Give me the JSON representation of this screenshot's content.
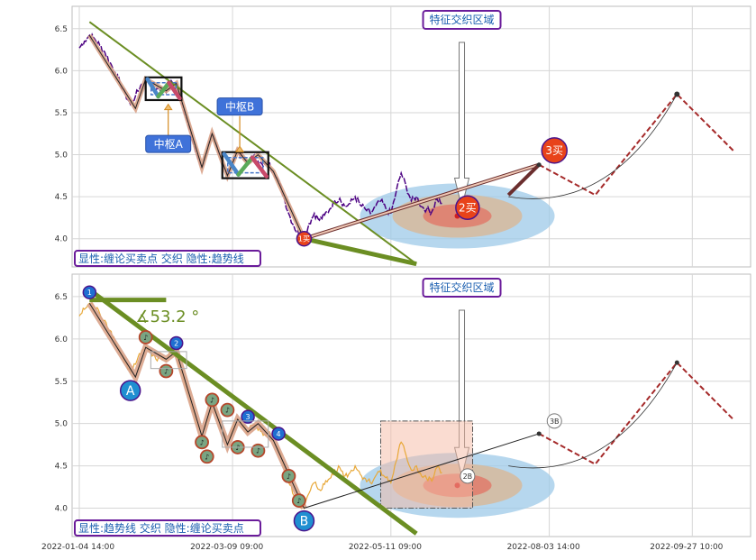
{
  "chart_data": {
    "type": "line",
    "x_ticks": [
      "2022-01-04 14:00",
      "2022-03-09 09:00",
      "2022-05-11 09:00",
      "2022-08-03 14:00",
      "2022-09-27 10:00"
    ],
    "panels": [
      {
        "caption": "显性:缠论买卖点 交织 隐性:趋势线",
        "zone_label": "特征交织区域",
        "y_ticks": [
          "4.0",
          "4.5",
          "5.0",
          "5.5",
          "6.0",
          "6.5"
        ],
        "ylim": [
          3.75,
          6.68
        ],
        "price_series_color": "#4b0082",
        "price": [
          6.27,
          6.35,
          6.42,
          6.38,
          6.3,
          6.22,
          6.1,
          5.98,
          5.85,
          5.72,
          5.6,
          5.7,
          5.82,
          5.9,
          5.84,
          5.76,
          5.8,
          5.74,
          5.88,
          5.8,
          5.6,
          5.42,
          5.2,
          5.0,
          4.85,
          5.02,
          5.25,
          5.1,
          4.92,
          4.75,
          4.95,
          5.05,
          4.96,
          4.9,
          4.98,
          4.92,
          4.86,
          4.9,
          4.8,
          4.7,
          4.5,
          4.3,
          4.15,
          4.05,
          4.0,
          4.18,
          4.3,
          4.22,
          4.28,
          4.35,
          4.45,
          4.48,
          4.38,
          4.42,
          4.5,
          4.4,
          4.35,
          4.3,
          4.38,
          4.45,
          4.36,
          4.3,
          4.55,
          4.78,
          4.62,
          4.45,
          4.5,
          4.38,
          4.35,
          4.32,
          4.48,
          4.42
        ],
        "pivots": [
          {
            "name": "中枢A",
            "low": 5.65,
            "high": 5.92
          },
          {
            "name": "中枢B",
            "low": 4.72,
            "high": 5.03
          }
        ],
        "trend_line": [
          [
            2,
            6.58
          ],
          [
            66,
            3.7
          ]
        ],
        "annotations": [
          "1买",
          "2买",
          "3买"
        ]
      },
      {
        "caption": "显性:趋势线 交织 隐性:缠论买卖点",
        "zone_label": "特征交织区域",
        "y_ticks": [
          "4.0",
          "4.5",
          "5.0",
          "5.5",
          "6.0",
          "6.5"
        ],
        "ylim": [
          3.75,
          6.68
        ],
        "price_series_color": "#e8a838",
        "angle_label": "∡53.2 °",
        "stroke_labels": [
          "A",
          "B"
        ],
        "numbered_points": [
          "1",
          "2",
          "3",
          "4"
        ],
        "future_labels": [
          "2B",
          "3B"
        ]
      }
    ],
    "forecast": {
      "x": [
        90,
        101,
        117,
        128
      ],
      "y": [
        4.88,
        4.52,
        5.72,
        5.05
      ]
    }
  }
}
